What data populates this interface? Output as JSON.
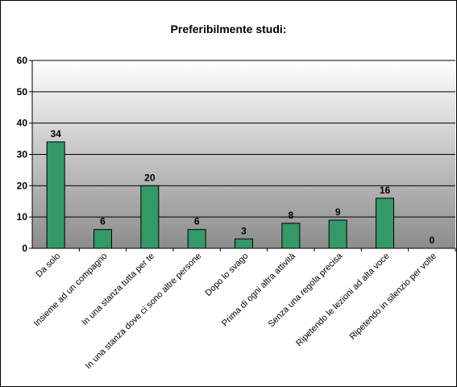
{
  "chart_data": {
    "type": "bar",
    "title": "Preferibilmente studi:",
    "xlabel": "",
    "ylabel": "",
    "ylim": [
      0,
      60
    ],
    "yticks": [
      0,
      10,
      20,
      30,
      40,
      50,
      60
    ],
    "grid": true,
    "legend": "none",
    "bar_color": "#339966",
    "categories": [
      "Da solo",
      "Insieme ad un compagno",
      "In una stanza tutta per te",
      "In una stanza dove ci sono altre persone",
      "Dopo lo svago",
      "Prima di ogni altra attività",
      "Senza una regola precisa",
      "Ripetendo le lezioni ad alta voce",
      "Ripetendo in silenzio per volte"
    ],
    "values": [
      34,
      6,
      20,
      6,
      3,
      8,
      9,
      16,
      0
    ],
    "value_labels": [
      "34",
      "6",
      "20",
      "6",
      "3",
      "8",
      "9",
      "16",
      "0"
    ]
  }
}
